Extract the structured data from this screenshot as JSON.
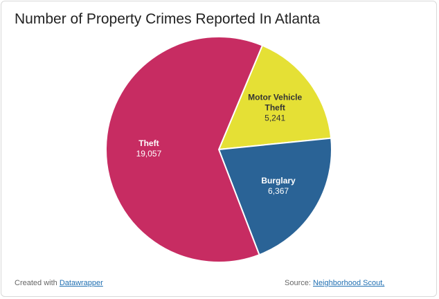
{
  "chart_data": {
    "type": "pie",
    "title": "Number of Property Crimes Reported In Atlanta",
    "categories": [
      "Motor Vehicle Theft",
      "Burglary",
      "Theft"
    ],
    "values": [
      5241,
      6367,
      19057
    ],
    "value_labels": [
      "5,241",
      "6,367",
      "19,057"
    ],
    "colors": [
      "#e5e035",
      "#2a6396",
      "#c72c62"
    ]
  },
  "footer": {
    "credit_text": "Created with",
    "credit_link": "Datawrapper",
    "source_text": "Source:",
    "source_link": "Neighborhood Scout,"
  }
}
